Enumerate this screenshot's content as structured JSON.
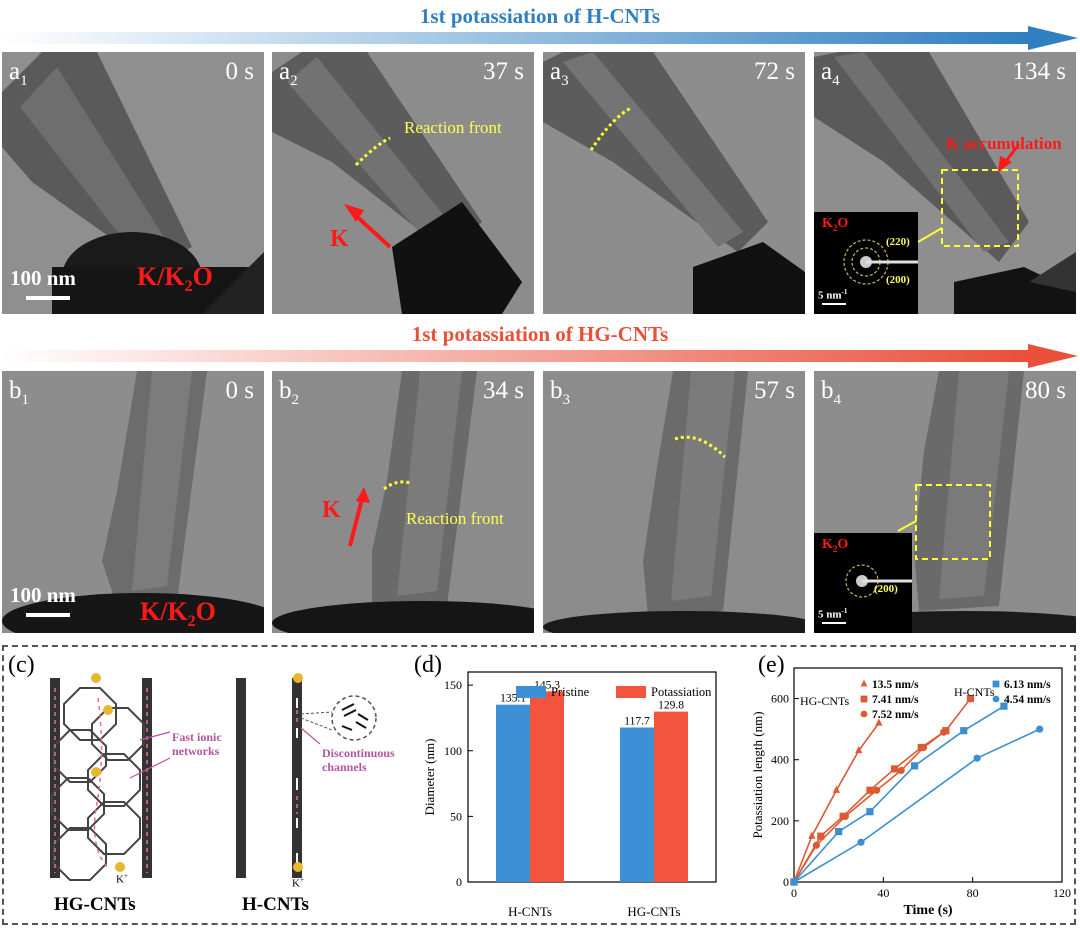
{
  "top_banner": {
    "title": "1st potassiation of H-CNTs",
    "color": "#2f7fc1"
  },
  "mid_banner": {
    "title": "1st potassiation of HG-CNTs",
    "color": "#e8503a"
  },
  "row_a": {
    "panels": [
      {
        "label": "a",
        "sub": "1",
        "time": "0 s"
      },
      {
        "label": "a",
        "sub": "2",
        "time": "37 s"
      },
      {
        "label": "a",
        "sub": "3",
        "time": "72 s"
      },
      {
        "label": "a",
        "sub": "4",
        "time": "134 s"
      }
    ],
    "scale": "100 nm",
    "source": {
      "text": "K/K",
      "sub": "2",
      "tail": "O"
    },
    "reaction_front": "Reaction front",
    "k_label": "K",
    "k_accumulation": "K accumulation",
    "inset": {
      "title_k": "K",
      "title_sub": "2",
      "title_o": "O",
      "ring1": "(220)",
      "ring2": "(200)",
      "scale": "5 nm",
      "scale_sup": "-1"
    }
  },
  "row_b": {
    "panels": [
      {
        "label": "b",
        "sub": "1",
        "time": "0 s"
      },
      {
        "label": "b",
        "sub": "2",
        "time": "34 s"
      },
      {
        "label": "b",
        "sub": "3",
        "time": "57 s"
      },
      {
        "label": "b",
        "sub": "4",
        "time": "80 s"
      }
    ],
    "scale": "100 nm",
    "source": {
      "text": "K/K",
      "sub": "2",
      "tail": "O"
    },
    "reaction_front": "Reaction front",
    "k_label": "K",
    "inset": {
      "title_k": "K",
      "title_sub": "2",
      "title_o": "O",
      "ring1": "(200)",
      "scale": "5 nm",
      "scale_sup": "-1"
    }
  },
  "panel_c": {
    "label": "(c)",
    "left_name": "HG-CNTs",
    "right_name": "H-CNTs",
    "fast_label_1": "Fast ionic",
    "fast_label_2": "networks",
    "disc_label_1": "Discontinuous",
    "disc_label_2": "channels",
    "k_ion": "K",
    "k_ion_sup": "+"
  },
  "panel_d": {
    "label": "(d)",
    "chart_data": {
      "type": "bar",
      "categories": [
        "H-CNTs",
        "HG-CNTs"
      ],
      "series": [
        {
          "name": "Pristine",
          "values": [
            135.1,
            117.7
          ],
          "color": "#3d8fd6"
        },
        {
          "name": "Potassiation",
          "values": [
            145.3,
            129.8
          ],
          "color": "#f2543d"
        }
      ],
      "value_labels": [
        [
          "135.1",
          "117.7"
        ],
        [
          "145.3",
          "129.8"
        ]
      ],
      "ylabel": "Diameter (nm)",
      "ylim": [
        0,
        160
      ],
      "yticks": [
        "0",
        "50",
        "100",
        "150"
      ],
      "legend": "top-right"
    }
  },
  "panel_e": {
    "label": "(e)",
    "chart_data": {
      "type": "line",
      "xlabel": "Time (s)",
      "ylabel": "Potassiation length (nm)",
      "xlim": [
        0,
        120
      ],
      "ylim": [
        0,
        700
      ],
      "xticks": [
        "0",
        "40",
        "80",
        "120"
      ],
      "yticks": [
        "0",
        "200",
        "400",
        "600"
      ],
      "group_labels": [
        "HG-CNTs",
        "H-CNTs"
      ],
      "series": [
        {
          "name": "13.5 nm/s",
          "group": "HG-CNTs",
          "marker": "triangle",
          "color": "#dc5a33",
          "x": [
            0,
            8,
            19,
            29,
            38
          ],
          "y": [
            0,
            150,
            300,
            430,
            520
          ]
        },
        {
          "name": "7.41 nm/s",
          "group": "HG-CNTs",
          "marker": "square",
          "color": "#dc5a33",
          "x": [
            0,
            12,
            22,
            34,
            45,
            57,
            68,
            79
          ],
          "y": [
            0,
            150,
            215,
            300,
            370,
            440,
            495,
            600
          ]
        },
        {
          "name": "7.52 nm/s",
          "group": "HG-CNTs",
          "marker": "circle",
          "color": "#dc5a33",
          "x": [
            0,
            10,
            23,
            37,
            48,
            58,
            67
          ],
          "y": [
            0,
            120,
            215,
            300,
            365,
            440,
            490
          ]
        },
        {
          "name": "6.13 nm/s",
          "group": "H-CNTs",
          "marker": "square",
          "color": "#3b8fd0",
          "x": [
            0,
            20,
            34,
            54,
            76,
            94
          ],
          "y": [
            0,
            165,
            230,
            380,
            495,
            575
          ]
        },
        {
          "name": "4.54 nm/s",
          "group": "H-CNTs",
          "marker": "circle",
          "color": "#3b8fd0",
          "x": [
            0,
            30,
            82,
            110
          ],
          "y": [
            0,
            130,
            405,
            500
          ]
        }
      ]
    }
  }
}
